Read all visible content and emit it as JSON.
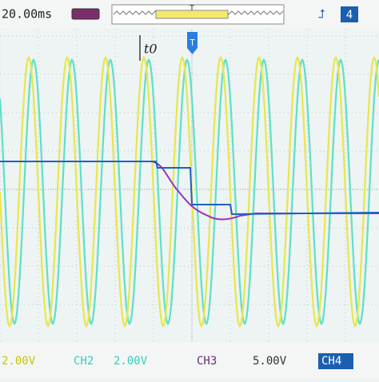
{
  "top_bar": {
    "timebase": "20.00ms",
    "trigger_marker": "T",
    "channel": "4"
  },
  "cursor_label": "t0",
  "bottom_bar": {
    "ch1": {
      "scale": "2.00V"
    },
    "ch2": {
      "name": "CH2",
      "scale": "2.00V"
    },
    "ch3": {
      "name": "CH3",
      "scale": "5.00V"
    },
    "ch4": {
      "name": "CH4"
    }
  }
}
